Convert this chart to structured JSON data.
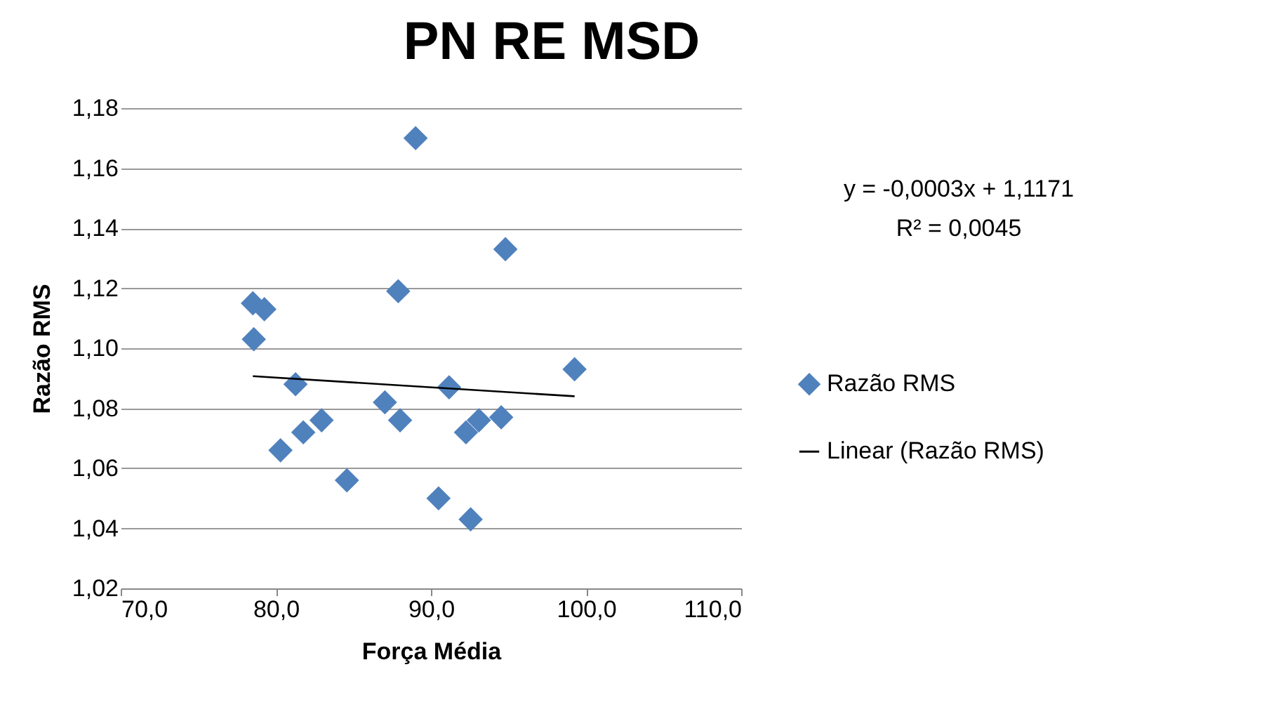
{
  "chart_data": {
    "type": "scatter",
    "title": "PN RE MSD",
    "xlabel": "Força Média",
    "ylabel": "Razão RMS",
    "xlim": [
      70,
      110
    ],
    "xticks": [
      {
        "value": 70,
        "label": "70,0"
      },
      {
        "value": 80,
        "label": "80,0"
      },
      {
        "value": 90,
        "label": "90,0"
      },
      {
        "value": 100,
        "label": "100,0"
      },
      {
        "value": 110,
        "label": "110,0"
      }
    ],
    "ylim": [
      1.02,
      1.18
    ],
    "yticks": [
      {
        "value": 1.02,
        "label": "1,02"
      },
      {
        "value": 1.04,
        "label": "1,04"
      },
      {
        "value": 1.06,
        "label": "1,06"
      },
      {
        "value": 1.08,
        "label": "1,08"
      },
      {
        "value": 1.1,
        "label": "1,10"
      },
      {
        "value": 1.12,
        "label": "1,12"
      },
      {
        "value": 1.14,
        "label": "1,14"
      },
      {
        "value": 1.16,
        "label": "1,16"
      },
      {
        "value": 1.18,
        "label": "1,18"
      }
    ],
    "grid": "y",
    "legend": "right",
    "series": [
      {
        "name": "Razão RMS",
        "marker": "diamond",
        "color": "#4f81bd",
        "x": [
          89.01,
          94.8,
          87.89,
          78.52,
          79.26,
          78.58,
          99.26,
          81.27,
          91.17,
          87.03,
          88.01,
          82.95,
          81.77,
          93.09,
          92.26,
          94.53,
          80.3,
          84.58,
          90.49,
          92.56
        ],
        "values": [
          1.17,
          1.133,
          1.119,
          1.115,
          1.113,
          1.103,
          1.093,
          1.088,
          1.087,
          1.082,
          1.076,
          1.076,
          1.072,
          1.076,
          1.072,
          1.077,
          1.066,
          1.056,
          1.05,
          1.043
        ]
      },
      {
        "name": "Linear (Razão RMS)",
        "type": "line",
        "marker": "none",
        "line_style": "solid",
        "color": "#000000",
        "x": [
          78.52,
          99.26
        ],
        "values": [
          1.0907,
          1.084
        ]
      }
    ],
    "annotations": [
      "y = -0,0003x + 1,1171",
      "R² = 0,0045"
    ]
  }
}
